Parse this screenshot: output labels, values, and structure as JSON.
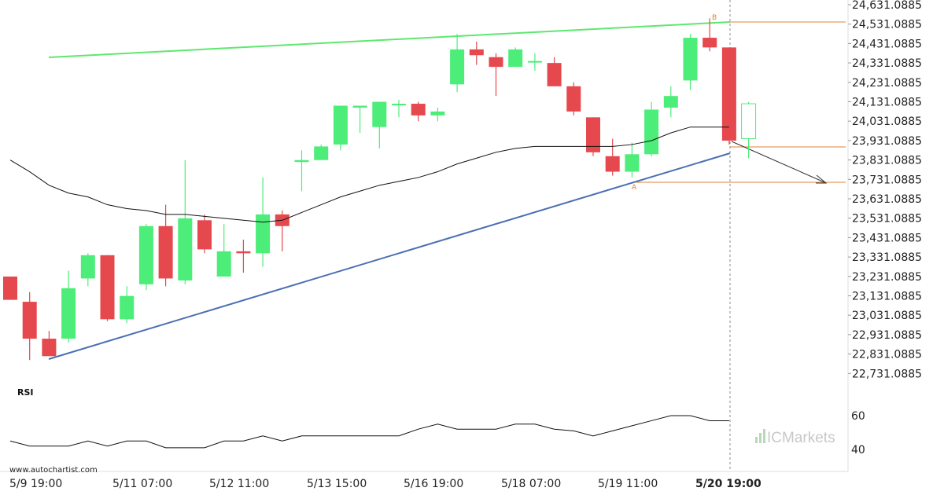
{
  "chart_data": {
    "type": "candlestick",
    "ylim": [
      22631.0885,
      24631.0885
    ],
    "y_ticks": [
      "24,631.0885",
      "24,531.0885",
      "24,431.0885",
      "24,331.0885",
      "24,231.0885",
      "24,131.0885",
      "24,031.0885",
      "23,931.0885",
      "23,831.0885",
      "23,731.0885",
      "23,631.0885",
      "23,531.0885",
      "23,431.0885",
      "23,331.0885",
      "23,231.0885",
      "23,131.0885",
      "23,031.0885",
      "22,931.0885",
      "22,831.0885",
      "22,731.0885"
    ],
    "x_ticks": [
      "5/9 19:00",
      "5/11 07:00",
      "5/12 11:00",
      "5/13 15:00",
      "5/16 19:00",
      "5/18 07:00",
      "5/19 11:00",
      "5/20 19:00"
    ],
    "highlight_x_tick": "5/20 19:00",
    "candles": [
      {
        "o": 23231,
        "h": 23231,
        "l": 23111,
        "c": 23111
      },
      {
        "o": 23101,
        "h": 23151,
        "l": 22801,
        "c": 22911
      },
      {
        "o": 22911,
        "h": 22951,
        "l": 22821,
        "c": 22821
      },
      {
        "o": 22911,
        "h": 23261,
        "l": 22891,
        "c": 23171
      },
      {
        "o": 23221,
        "h": 23351,
        "l": 23181,
        "c": 23341
      },
      {
        "o": 23341,
        "h": 23341,
        "l": 23001,
        "c": 23011
      },
      {
        "o": 23011,
        "h": 23181,
        "l": 22991,
        "c": 23131
      },
      {
        "o": 23191,
        "h": 23501,
        "l": 23161,
        "c": 23491
      },
      {
        "o": 23491,
        "h": 23601,
        "l": 23181,
        "c": 23221
      },
      {
        "o": 23211,
        "h": 23831,
        "l": 23191,
        "c": 23531
      },
      {
        "o": 23521,
        "h": 23551,
        "l": 23351,
        "c": 23371
      },
      {
        "o": 23231,
        "h": 23501,
        "l": 23231,
        "c": 23361
      },
      {
        "o": 23361,
        "h": 23421,
        "l": 23251,
        "c": 23351
      },
      {
        "o": 23351,
        "h": 23741,
        "l": 23281,
        "c": 23551
      },
      {
        "o": 23551,
        "h": 23571,
        "l": 23361,
        "c": 23491
      },
      {
        "o": 23821,
        "h": 23881,
        "l": 23671,
        "c": 23831
      },
      {
        "o": 23831,
        "h": 23911,
        "l": 23831,
        "c": 23901
      },
      {
        "o": 23911,
        "h": 24111,
        "l": 23881,
        "c": 24111
      },
      {
        "o": 24101,
        "h": 24111,
        "l": 23971,
        "c": 24111
      },
      {
        "o": 24001,
        "h": 24131,
        "l": 23891,
        "c": 24131
      },
      {
        "o": 24121,
        "h": 24141,
        "l": 24051,
        "c": 24121
      },
      {
        "o": 24121,
        "h": 24131,
        "l": 24031,
        "c": 24061
      },
      {
        "o": 24061,
        "h": 24101,
        "l": 24031,
        "c": 24081
      },
      {
        "o": 24221,
        "h": 24481,
        "l": 24181,
        "c": 24401
      },
      {
        "o": 24401,
        "h": 24441,
        "l": 24321,
        "c": 24371
      },
      {
        "o": 24361,
        "h": 24381,
        "l": 24161,
        "c": 24311
      },
      {
        "o": 24311,
        "h": 24411,
        "l": 24321,
        "c": 24401
      },
      {
        "o": 24341,
        "h": 24381,
        "l": 24291,
        "c": 24341
      },
      {
        "o": 24331,
        "h": 24361,
        "l": 24221,
        "c": 24211
      },
      {
        "o": 24211,
        "h": 24231,
        "l": 24061,
        "c": 24081
      },
      {
        "o": 24051,
        "h": 24051,
        "l": 23851,
        "c": 23871
      },
      {
        "o": 23851,
        "h": 23941,
        "l": 23751,
        "c": 23771
      },
      {
        "o": 23771,
        "h": 23921,
        "l": 23741,
        "c": 23861
      },
      {
        "o": 23861,
        "h": 24131,
        "l": 23851,
        "c": 24091
      },
      {
        "o": 24101,
        "h": 24211,
        "l": 24051,
        "c": 24161
      },
      {
        "o": 24241,
        "h": 24481,
        "l": 24191,
        "c": 24461
      },
      {
        "o": 24461,
        "h": 24561,
        "l": 24391,
        "c": 24411
      },
      {
        "o": 24411,
        "h": 24411,
        "l": 23911,
        "c": 23931
      },
      {
        "o": 23941,
        "h": 24131,
        "l": 23841,
        "c": 24121
      }
    ],
    "moving_average": [
      23831,
      23771,
      23701,
      23661,
      23641,
      23601,
      23581,
      23571,
      23551,
      23551,
      23541,
      23531,
      23521,
      23511,
      23521,
      23561,
      23601,
      23641,
      23671,
      23701,
      23721,
      23741,
      23771,
      23811,
      23841,
      23871,
      23891,
      23901,
      23901,
      23901,
      23901,
      23901,
      23911,
      23931,
      23971,
      24001,
      24001,
      24001
    ],
    "rsi": [
      45,
      42,
      42,
      42,
      45,
      42,
      45,
      45,
      41,
      41,
      41,
      45,
      45,
      48,
      45,
      48,
      48,
      48,
      48,
      48,
      48,
      52,
      55,
      52,
      52,
      52,
      55,
      55,
      52,
      51,
      48,
      51,
      54,
      57,
      60,
      60,
      57,
      57
    ],
    "rsi_ticks": [
      "60",
      "40"
    ],
    "rsi_label": "RSI",
    "point_a": "A",
    "point_b": "B",
    "colors": {
      "up": "#4ded79",
      "down": "#e5484d",
      "upper_trend": "#5ee86e",
      "lower_trend": "#4a6fb3",
      "fib": "#e0803a"
    },
    "watermark_url": "www.autochartist.com",
    "brand": "ICMarkets"
  }
}
